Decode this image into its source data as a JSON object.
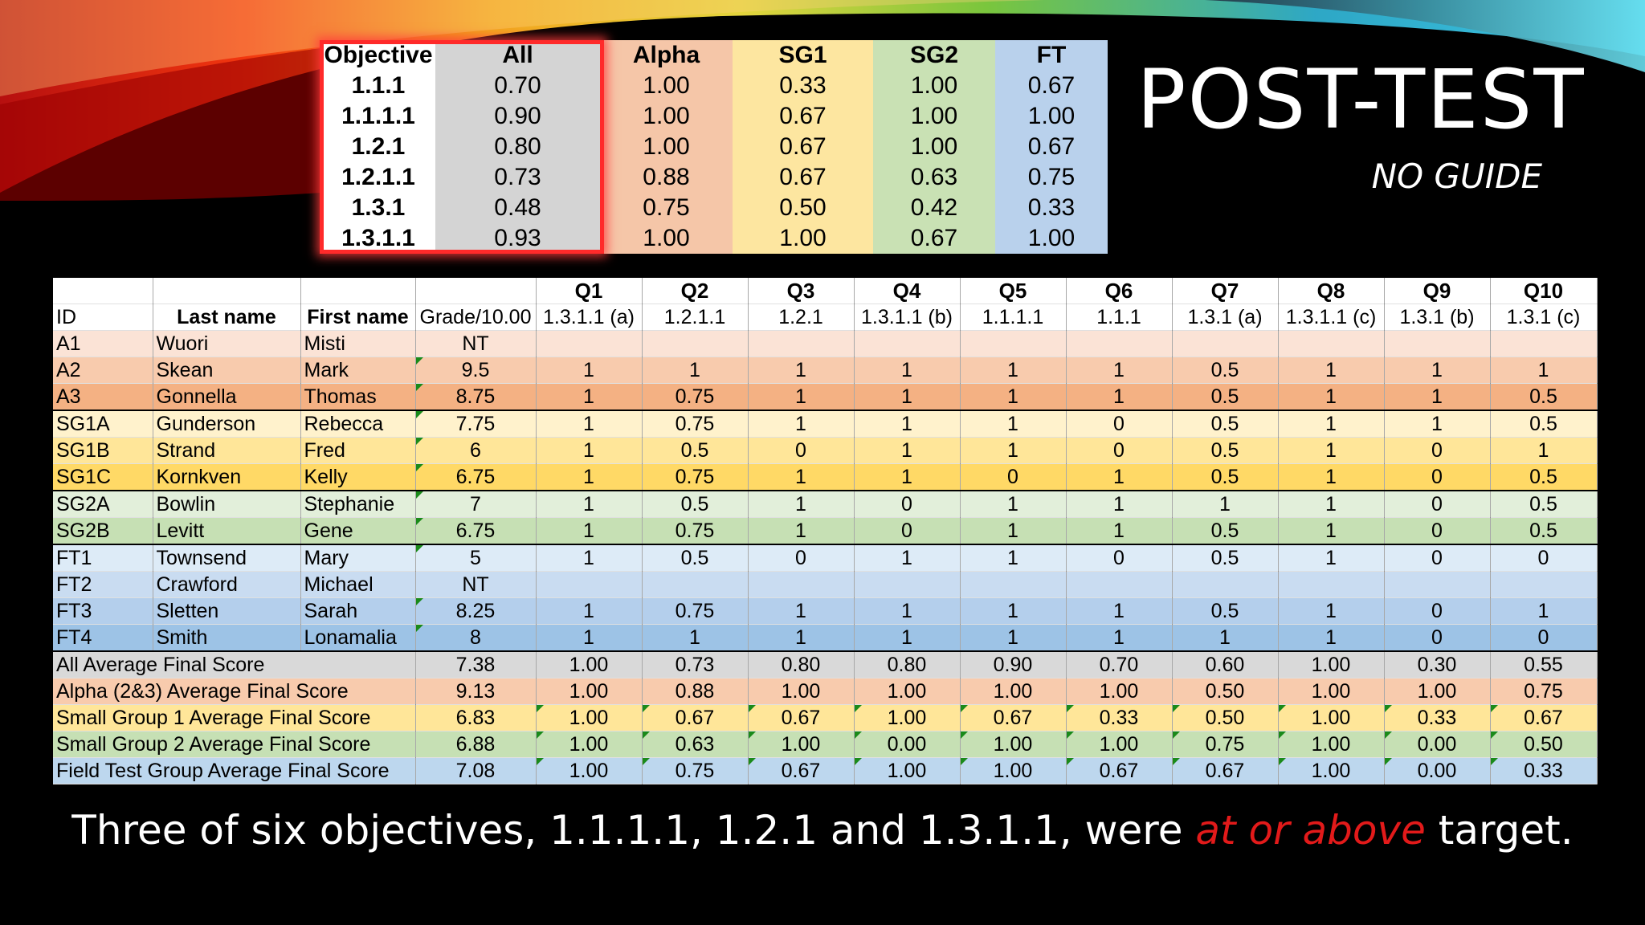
{
  "slide": {
    "title": "POST-TEST",
    "subtitle": "NO GUIDE",
    "caption_before": "Three of six objectives, 1.1.1.1, 1.2.1 and 1.3.1.1, were ",
    "caption_highlight": "at or above",
    "caption_after": " target.",
    "highlight_color": "#e21a1a"
  },
  "objectives": {
    "headers": [
      "Objective",
      "All",
      "Alpha",
      "SG1",
      "SG2",
      "FT"
    ],
    "rows": [
      [
        "1.1.1",
        "0.70",
        "1.00",
        "0.33",
        "1.00",
        "0.67"
      ],
      [
        "1.1.1.1",
        "0.90",
        "1.00",
        "0.67",
        "1.00",
        "1.00"
      ],
      [
        "1.2.1",
        "0.80",
        "1.00",
        "0.67",
        "1.00",
        "0.67"
      ],
      [
        "1.2.1.1",
        "0.73",
        "0.88",
        "0.67",
        "0.63",
        "0.75"
      ],
      [
        "1.3.1",
        "0.48",
        "0.75",
        "0.50",
        "0.42",
        "0.33"
      ],
      [
        "1.3.1.1",
        "0.93",
        "1.00",
        "1.00",
        "0.67",
        "1.00"
      ]
    ]
  },
  "grades": {
    "question_headers": [
      "Q1",
      "Q2",
      "Q3",
      "Q4",
      "Q5",
      "Q6",
      "Q7",
      "Q8",
      "Q9",
      "Q10"
    ],
    "col_headers": [
      "ID",
      "Last name",
      "First name",
      "Grade/10.00",
      "1.3.1.1 (a)",
      "1.2.1.1",
      "1.2.1",
      "1.3.1.1 (b)",
      "1.1.1.1",
      "1.1.1",
      "1.3.1 (a)",
      "1.3.1.1 (c)",
      "1.3.1 (b)",
      "1.3.1 (c)"
    ],
    "students": [
      {
        "id": "A1",
        "last": "Wuori",
        "first": "Misti",
        "grade": "NT",
        "q": [
          "",
          "",
          "",
          "",
          "",
          "",
          "",
          "",
          "",
          ""
        ]
      },
      {
        "id": "A2",
        "last": "Skean",
        "first": "Mark",
        "grade": "9.5",
        "q": [
          "1",
          "1",
          "1",
          "1",
          "1",
          "1",
          "0.5",
          "1",
          "1",
          "1"
        ]
      },
      {
        "id": "A3",
        "last": "Gonnella",
        "first": "Thomas",
        "grade": "8.75",
        "q": [
          "1",
          "0.75",
          "1",
          "1",
          "1",
          "1",
          "0.5",
          "1",
          "1",
          "0.5"
        ]
      },
      {
        "id": "SG1A",
        "last": "Gunderson",
        "first": "Rebecca",
        "grade": "7.75",
        "q": [
          "1",
          "0.75",
          "1",
          "1",
          "1",
          "0",
          "0.5",
          "1",
          "1",
          "0.5"
        ]
      },
      {
        "id": "SG1B",
        "last": "Strand",
        "first": "Fred",
        "grade": "6",
        "q": [
          "1",
          "0.5",
          "0",
          "1",
          "1",
          "0",
          "0.5",
          "1",
          "0",
          "1"
        ]
      },
      {
        "id": "SG1C",
        "last": "Kornkven",
        "first": "Kelly",
        "grade": "6.75",
        "q": [
          "1",
          "0.75",
          "1",
          "1",
          "0",
          "1",
          "0.5",
          "1",
          "0",
          "0.5"
        ]
      },
      {
        "id": "SG2A",
        "last": "Bowlin",
        "first": "Stephanie",
        "grade": "7",
        "q": [
          "1",
          "0.5",
          "1",
          "0",
          "1",
          "1",
          "1",
          "1",
          "0",
          "0.5"
        ]
      },
      {
        "id": "SG2B",
        "last": "Levitt",
        "first": "Gene",
        "grade": "6.75",
        "q": [
          "1",
          "0.75",
          "1",
          "0",
          "1",
          "1",
          "0.5",
          "1",
          "0",
          "0.5"
        ]
      },
      {
        "id": "FT1",
        "last": "Townsend",
        "first": "Mary",
        "grade": "5",
        "q": [
          "1",
          "0.5",
          "0",
          "1",
          "1",
          "0",
          "0.5",
          "1",
          "0",
          "0"
        ]
      },
      {
        "id": "FT2",
        "last": "Crawford",
        "first": "Michael",
        "grade": "NT",
        "q": [
          "",
          "",
          "",
          "",
          "",
          "",
          "",
          "",
          "",
          ""
        ]
      },
      {
        "id": "FT3",
        "last": "Sletten",
        "first": "Sarah",
        "grade": "8.25",
        "q": [
          "1",
          "0.75",
          "1",
          "1",
          "1",
          "1",
          "0.5",
          "1",
          "0",
          "1"
        ]
      },
      {
        "id": "FT4",
        "last": "Smith",
        "first": "Lonamalia",
        "grade": "8",
        "q": [
          "1",
          "1",
          "1",
          "1",
          "1",
          "1",
          "1",
          "1",
          "0",
          "0"
        ]
      }
    ],
    "averages": [
      {
        "label": "All Average Final Score",
        "grade": "7.38",
        "q": [
          "1.00",
          "0.73",
          "0.80",
          "0.80",
          "0.90",
          "0.70",
          "0.60",
          "1.00",
          "0.30",
          "0.55"
        ]
      },
      {
        "label": "Alpha (2&3) Average Final Score",
        "grade": "9.13",
        "q": [
          "1.00",
          "0.88",
          "1.00",
          "1.00",
          "1.00",
          "1.00",
          "0.50",
          "1.00",
          "1.00",
          "0.75"
        ]
      },
      {
        "label": "Small Group 1 Average Final Score",
        "grade": "6.83",
        "q": [
          "1.00",
          "0.67",
          "0.67",
          "1.00",
          "0.67",
          "0.33",
          "0.50",
          "1.00",
          "0.33",
          "0.67"
        ]
      },
      {
        "label": "Small Group 2 Average Final Score",
        "grade": "6.88",
        "q": [
          "1.00",
          "0.63",
          "1.00",
          "0.00",
          "1.00",
          "1.00",
          "0.75",
          "1.00",
          "0.00",
          "0.50"
        ]
      },
      {
        "label": "Field Test Group Average Final Score",
        "grade": "7.08",
        "q": [
          "1.00",
          "0.75",
          "0.67",
          "1.00",
          "1.00",
          "0.67",
          "0.67",
          "1.00",
          "0.00",
          "0.33"
        ]
      }
    ]
  }
}
